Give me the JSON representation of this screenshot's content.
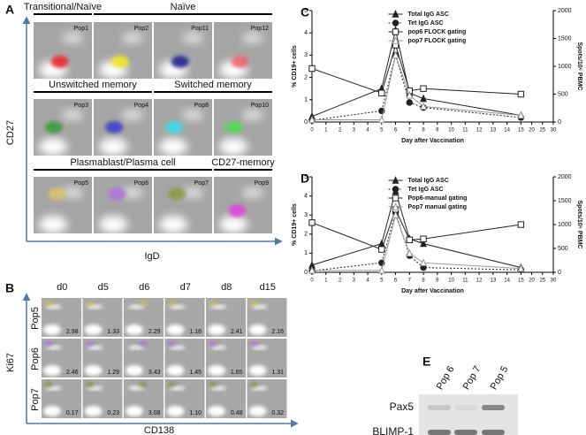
{
  "panel_a": {
    "letter": "A",
    "y_axis": "CD27",
    "x_axis": "IgD",
    "rows": [
      {
        "groups": [
          {
            "label": "Transitional/Naïve",
            "pops": [
              {
                "name": "Pop1",
                "color": "#e8222a"
              }
            ]
          },
          {
            "label": "Naïve",
            "pops": [
              {
                "name": "Pop2",
                "color": "#f2e81a"
              },
              {
                "name": "Pop11",
                "color": "#1a1a8c"
              },
              {
                "name": "Pop12",
                "color": "#f0606e"
              }
            ]
          }
        ]
      },
      {
        "groups": [
          {
            "label": "Unswitched memory",
            "pops": [
              {
                "name": "Pop3",
                "color": "#3c9a3c"
              },
              {
                "name": "Pop4",
                "color": "#3a3ad0"
              }
            ]
          },
          {
            "label": "Switched memory",
            "pops": [
              {
                "name": "Pop8",
                "color": "#30e0f0"
              },
              {
                "name": "Pop10",
                "color": "#4ee04e"
              }
            ]
          }
        ]
      },
      {
        "groups": [
          {
            "label": "Plasmablast/Plasma cell",
            "pops": [
              {
                "name": "Pop5",
                "color": "#d8c868"
              },
              {
                "name": "Pop6",
                "color": "#b070e0"
              },
              {
                "name": "Pop7",
                "color": "#8a9a40"
              }
            ]
          },
          {
            "label": "CD27-memory",
            "pops": [
              {
                "name": "Pop9",
                "color": "#e040e0"
              }
            ]
          }
        ]
      }
    ]
  },
  "panel_b": {
    "letter": "B",
    "y_axis": "Ki67",
    "x_axis": "CD138",
    "columns": [
      "d0",
      "d5",
      "d6",
      "d7",
      "d8",
      "d15"
    ],
    "rows": [
      {
        "name": "Pop5",
        "color": "#d8c050",
        "cells": [
          "2.98",
          "1.33",
          "2.29",
          "1.18",
          "2.41",
          "2.16"
        ]
      },
      {
        "name": "Pop6",
        "color": "#a070d8",
        "cells": [
          "2.46",
          "1.29",
          "3.43",
          "1.45",
          "1.65",
          "1.31"
        ]
      },
      {
        "name": "Pop7",
        "color": "#7a8a30",
        "cells": [
          "0.17",
          "0.23",
          "3.08",
          "1.10",
          "0.48",
          "0.32"
        ]
      }
    ]
  },
  "panel_e": {
    "letter": "E",
    "lanes": [
      "Pop 6",
      "Pop 7",
      "Pop 5"
    ],
    "rows": [
      "Pax5",
      "BLIMP-1"
    ]
  },
  "chart_data": [
    {
      "type": "line",
      "panel_label": "C",
      "x_label": "Day after Vaccination",
      "y_label": "% CD19+ cells",
      "y2_label": "Spots/10⁶ PBMC",
      "x": [
        0,
        5,
        6,
        7,
        8,
        15
      ],
      "xlim": [
        0,
        30
      ],
      "xbreak": 15,
      "xticks": [
        0,
        1,
        2,
        3,
        4,
        5,
        6,
        7,
        8,
        9,
        10,
        11,
        12,
        13,
        14,
        15,
        20,
        25,
        30
      ],
      "ylim": [
        0,
        5
      ],
      "yticks": [
        0,
        1,
        2,
        3,
        4,
        5
      ],
      "y2lim": [
        0,
        2000
      ],
      "y2ticks": [
        0,
        500,
        1000,
        1500,
        2000
      ],
      "legend": "top-center",
      "series": [
        {
          "name": "Total IgG ASC",
          "axis": "y2",
          "marker": "triangle-filled",
          "dash": "solid",
          "color": "#222222",
          "values": [
            100,
            600,
            1650,
            520,
            420,
            120
          ]
        },
        {
          "name": "Tet IgG ASC",
          "axis": "y2",
          "marker": "circle-filled",
          "dash": "dotted",
          "color": "#222222",
          "values": [
            30,
            200,
            1200,
            350,
            260,
            80
          ]
        },
        {
          "name": "pop6 FLOCK gating",
          "marker": "square-open",
          "dash": "solid",
          "color": "#222222",
          "values": [
            2.4,
            1.3,
            3.45,
            1.4,
            1.5,
            1.25
          ]
        },
        {
          "name": "pop7 FLOCK gating",
          "marker": "triangle-open",
          "dash": "solid",
          "color": "#999999",
          "values": [
            0.1,
            0.1,
            3.0,
            1.2,
            0.7,
            0.3
          ]
        }
      ]
    },
    {
      "type": "line",
      "panel_label": "D",
      "x_label": "Day after Vaccination",
      "y_label": "% CD19+ cells",
      "y2_label": "Spots/10⁶ PBMC",
      "x": [
        0,
        5,
        6,
        7,
        8,
        15
      ],
      "xlim": [
        0,
        30
      ],
      "xbreak": 15,
      "xticks": [
        0,
        1,
        2,
        3,
        4,
        5,
        6,
        7,
        8,
        9,
        10,
        11,
        12,
        13,
        14,
        15,
        20,
        25,
        30
      ],
      "ylim": [
        0,
        5
      ],
      "yticks": [
        0,
        1,
        2,
        3,
        4,
        5
      ],
      "y2lim": [
        0,
        2000
      ],
      "y2ticks": [
        0,
        500,
        1000,
        1500,
        2000
      ],
      "legend": "top-center",
      "series": [
        {
          "name": "Total IgG ASC",
          "axis": "y2",
          "marker": "triangle-filled",
          "dash": "solid",
          "color": "#222222",
          "values": [
            150,
            600,
            1700,
            700,
            600,
            100
          ]
        },
        {
          "name": "Tet IgG ASC",
          "axis": "y2",
          "marker": "circle-filled",
          "dash": "dotted",
          "color": "#222222",
          "values": [
            30,
            200,
            1250,
            350,
            100,
            50
          ]
        },
        {
          "name": "Pop6-manual gating",
          "marker": "square-open",
          "dash": "solid",
          "color": "#222222",
          "values": [
            2.6,
            1.2,
            3.3,
            1.7,
            1.75,
            2.5
          ]
        },
        {
          "name": "Pop7 manual gating",
          "marker": "triangle-open",
          "dash": "solid",
          "color": "#999999",
          "values": [
            0.1,
            0.1,
            3.0,
            1.0,
            0.5,
            0.2
          ]
        }
      ]
    }
  ]
}
